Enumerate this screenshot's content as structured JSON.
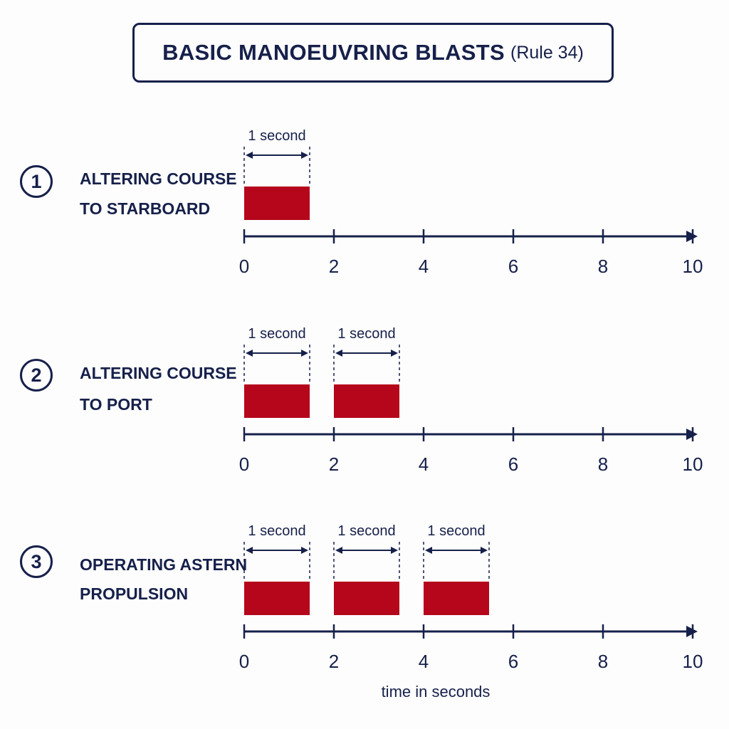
{
  "header": {
    "title": "BASIC MANOEUVRING BLASTS",
    "rule": "(Rule 34)"
  },
  "colors": {
    "blast": "#b5061b",
    "ink": "#16204a",
    "background": "#fdfdfd"
  },
  "axis": {
    "min": 0,
    "max": 10,
    "ticks": [
      0,
      2,
      4,
      6,
      8,
      10
    ],
    "xlabel": "time in seconds"
  },
  "rows": [
    {
      "number": "1",
      "label_line1": "ALTERING COURSE",
      "label_line2": "TO STARBOARD",
      "blasts": [
        {
          "start": 0,
          "duration": 1,
          "label": "1 second"
        }
      ]
    },
    {
      "number": "2",
      "label_line1": "ALTERING COURSE",
      "label_line2": "TO PORT",
      "blasts": [
        {
          "start": 0,
          "duration": 1,
          "label": "1 second"
        },
        {
          "start": 2,
          "duration": 1,
          "label": "1 second"
        }
      ]
    },
    {
      "number": "3",
      "label_line1": "OPERATING ASTERN",
      "label_line2": "PROPULSION",
      "blasts": [
        {
          "start": 0,
          "duration": 1,
          "label": "1 second"
        },
        {
          "start": 2,
          "duration": 1,
          "label": "1 second"
        },
        {
          "start": 4,
          "duration": 1,
          "label": "1 second"
        }
      ]
    }
  ]
}
